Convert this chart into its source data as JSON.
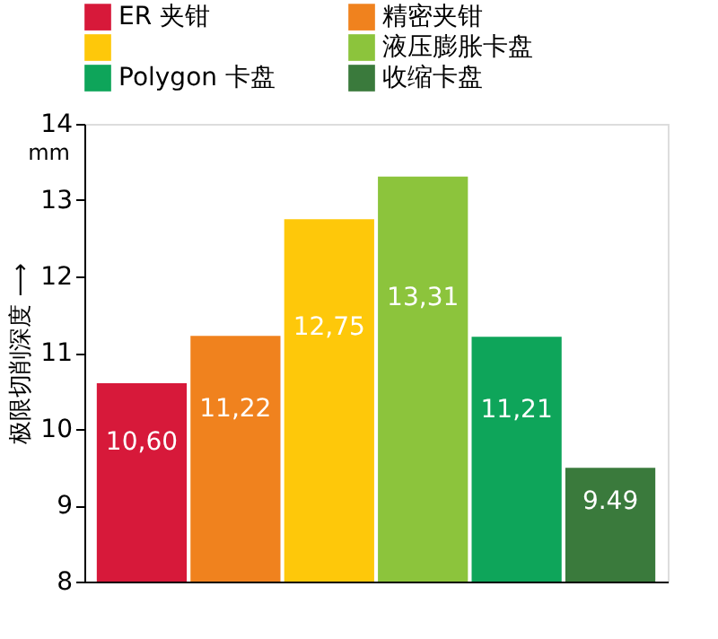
{
  "chart_data": {
    "type": "bar",
    "categories": [
      null
    ],
    "series": [
      {
        "name": "ER 夹钳",
        "color": "#d7193a",
        "values": [
          10.6
        ],
        "value_labels": [
          "10,60"
        ]
      },
      {
        "name": "精密夹钳",
        "color": "#f0821e",
        "values": [
          11.22
        ],
        "value_labels": [
          "11,22"
        ]
      },
      {
        "color": "#fec80a",
        "values": [
          12.75
        ],
        "value_labels": [
          "12,75"
        ]
      },
      {
        "name": "液压膨胀卡盘",
        "color": "#8cc43c",
        "values": [
          13.31
        ],
        "value_labels": [
          "13,31"
        ]
      },
      {
        "name": "Polygon 卡盘",
        "color": "#0ea55a",
        "values": [
          11.21
        ],
        "value_labels": [
          "11,21"
        ]
      },
      {
        "name": "收缩卡盘",
        "color": "#3a7a3c",
        "values": [
          9.49
        ],
        "value_labels": [
          "9.49"
        ]
      }
    ],
    "ylabel": "极限切削深度 ⟶",
    "annotations": [
      "mm"
    ],
    "ylim": [
      8,
      14
    ],
    "yticks": [
      8,
      9,
      10,
      11,
      12,
      13,
      14
    ],
    "legend": "top",
    "tick_labels": "y",
    "grid": false
  }
}
